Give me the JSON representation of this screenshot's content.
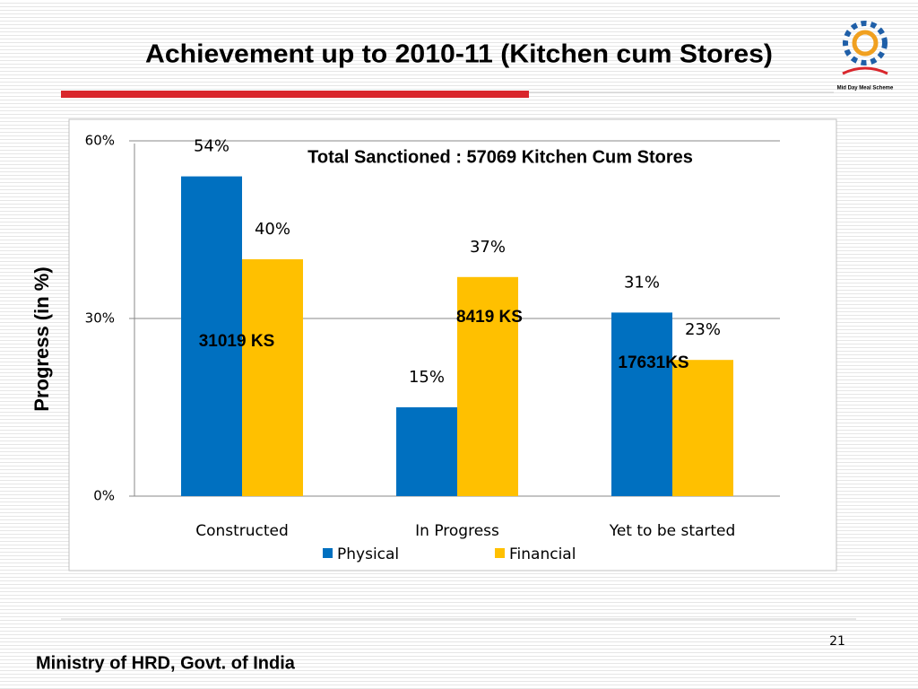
{
  "chart_data": {
    "type": "bar",
    "slide_title": "Achievement up to 2010-11 (Kitchen cum Stores)",
    "logo_text": "Mid Day Meal Scheme",
    "ylabel": "Progress (in %)",
    "categories": [
      "Constructed",
      "In Progress",
      "Yet to be started"
    ],
    "series": [
      {
        "name": "Physical",
        "color": "#0070c0",
        "values": [
          54,
          15,
          31
        ],
        "value_labels": [
          "54%",
          "15%",
          "31%"
        ]
      },
      {
        "name": "Financial",
        "color": "#ffc000",
        "values": [
          40,
          37,
          23
        ],
        "value_labels": [
          "40%",
          "37%",
          "23%"
        ]
      }
    ],
    "ylim": [
      0,
      60
    ],
    "yticks": [
      {
        "value": 0,
        "label": "0%"
      },
      {
        "value": 30,
        "label": "30%"
      },
      {
        "value": 60,
        "label": "60%"
      }
    ],
    "grid": true,
    "legend": "bottom",
    "annotations": [
      "Total Sanctioned : 57069 Kitchen Cum Stores",
      "31019 KS",
      "8419 KS",
      "17631KS"
    ],
    "footer": "Ministry of HRD, Govt. of India",
    "page_number": "21"
  }
}
